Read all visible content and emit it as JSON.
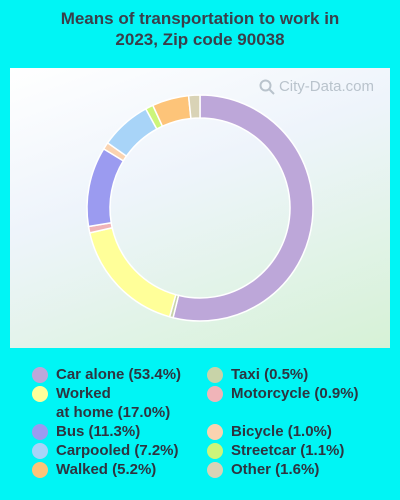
{
  "title_lines": [
    "Means of transportation to work in",
    "2023, Zip code 90038"
  ],
  "watermark": "City-Data.com",
  "chart_data": {
    "type": "pie",
    "title": "Means of transportation to work in 2023, Zip code 90038",
    "slices": [
      {
        "label": "Car alone (53.4%)",
        "value": 53.4,
        "color": "#bda7d9"
      },
      {
        "label": "Taxi (0.5%)",
        "value": 0.5,
        "color": "#c8d3a8"
      },
      {
        "label": "Worked\nat home (17.0%)",
        "value": 17.0,
        "color": "#ffff99"
      },
      {
        "label": "Motorcycle (0.9%)",
        "value": 0.9,
        "color": "#f0b4b8"
      },
      {
        "label": "Bus (11.3%)",
        "value": 11.3,
        "color": "#9b9bf0"
      },
      {
        "label": "Bicycle (1.0%)",
        "value": 1.0,
        "color": "#fad3b0"
      },
      {
        "label": "Carpooled (7.2%)",
        "value": 7.2,
        "color": "#a8d4f8"
      },
      {
        "label": "Streetcar (1.1%)",
        "value": 1.1,
        "color": "#ccf57a"
      },
      {
        "label": "Walked (5.2%)",
        "value": 5.2,
        "color": "#fdc479"
      },
      {
        "label": "Other (1.6%)",
        "value": 1.6,
        "color": "#d9d3b6"
      }
    ],
    "legend_position": "bottom"
  }
}
